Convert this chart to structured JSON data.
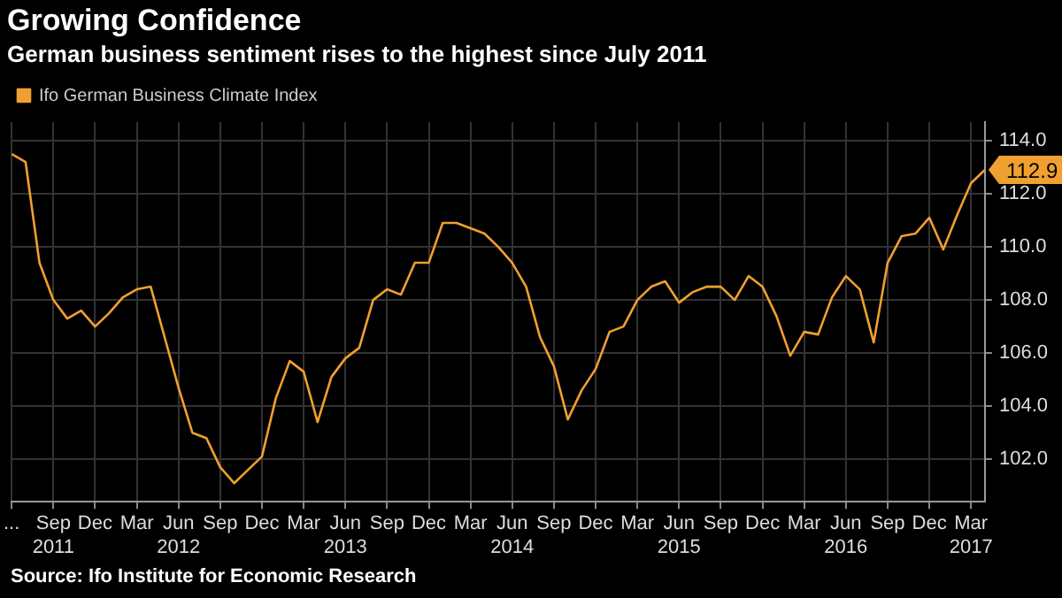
{
  "chart_data": {
    "type": "line",
    "title": "Growing Confidence",
    "subtitle": "German business sentiment rises to the highest since July 2011",
    "annotations": [
      "Source: Ifo Institute for Economic Research"
    ],
    "x": [
      "2011-06",
      "2011-07",
      "2011-08",
      "2011-09",
      "2011-10",
      "2011-11",
      "2011-12",
      "2012-01",
      "2012-02",
      "2012-03",
      "2012-04",
      "2012-05",
      "2012-06",
      "2012-07",
      "2012-08",
      "2012-09",
      "2012-10",
      "2012-11",
      "2012-12",
      "2013-01",
      "2013-02",
      "2013-03",
      "2013-04",
      "2013-05",
      "2013-06",
      "2013-07",
      "2013-08",
      "2013-09",
      "2013-10",
      "2013-11",
      "2013-12",
      "2014-01",
      "2014-02",
      "2014-03",
      "2014-04",
      "2014-05",
      "2014-06",
      "2014-07",
      "2014-08",
      "2014-09",
      "2014-10",
      "2014-11",
      "2014-12",
      "2015-01",
      "2015-02",
      "2015-03",
      "2015-04",
      "2015-05",
      "2015-06",
      "2015-07",
      "2015-08",
      "2015-09",
      "2015-10",
      "2015-11",
      "2015-12",
      "2016-01",
      "2016-02",
      "2016-03",
      "2016-04",
      "2016-05",
      "2016-06",
      "2016-07",
      "2016-08",
      "2016-09",
      "2016-10",
      "2016-11",
      "2016-12",
      "2017-01",
      "2017-02",
      "2017-03",
      "2017-04"
    ],
    "series": [
      {
        "name": "Ifo German Business Climate Index",
        "color": "#f0a030",
        "values": [
          113.5,
          113.2,
          109.4,
          108.0,
          107.3,
          107.6,
          107.0,
          107.5,
          108.1,
          108.4,
          108.5,
          106.6,
          104.7,
          103.0,
          102.8,
          101.7,
          101.1,
          101.6,
          102.1,
          104.3,
          105.7,
          105.3,
          103.4,
          105.1,
          105.8,
          106.2,
          108.0,
          108.4,
          108.2,
          109.4,
          109.4,
          110.9,
          110.9,
          110.7,
          110.5,
          110.0,
          109.4,
          108.5,
          106.6,
          105.5,
          103.5,
          104.6,
          105.4,
          106.8,
          107.0,
          108.0,
          108.5,
          108.7,
          107.9,
          108.3,
          108.5,
          108.5,
          108.0,
          108.9,
          108.5,
          107.4,
          105.9,
          106.8,
          106.7,
          108.1,
          108.9,
          108.4,
          106.4,
          109.4,
          110.4,
          110.5,
          111.1,
          109.9,
          111.2,
          112.4,
          112.9
        ],
        "value_labels": [
          null,
          null,
          null,
          null,
          null,
          null,
          null,
          null,
          null,
          null,
          null,
          null,
          null,
          null,
          null,
          null,
          null,
          null,
          null,
          null,
          null,
          null,
          null,
          null,
          null,
          null,
          null,
          null,
          null,
          null,
          null,
          null,
          null,
          null,
          null,
          null,
          null,
          null,
          null,
          null,
          null,
          null,
          null,
          null,
          null,
          null,
          null,
          null,
          null,
          null,
          null,
          null,
          null,
          null,
          null,
          null,
          null,
          null,
          null,
          null,
          null,
          null,
          null,
          null,
          null,
          null,
          null,
          null,
          null,
          null,
          "112.9"
        ]
      }
    ],
    "xlim": [
      "2011-06",
      "2017-04"
    ],
    "xticks": [
      {
        "value": "2011-06",
        "label": "..."
      },
      {
        "value": "2011-09",
        "label": "Sep\n2011"
      },
      {
        "value": "2011-12",
        "label": "Dec"
      },
      {
        "value": "2012-03",
        "label": "Mar"
      },
      {
        "value": "2012-06",
        "label": "Jun\n2012"
      },
      {
        "value": "2012-09",
        "label": "Sep"
      },
      {
        "value": "2012-12",
        "label": "Dec"
      },
      {
        "value": "2013-03",
        "label": "Mar"
      },
      {
        "value": "2013-06",
        "label": "Jun\n2013"
      },
      {
        "value": "2013-09",
        "label": "Sep"
      },
      {
        "value": "2013-12",
        "label": "Dec"
      },
      {
        "value": "2014-03",
        "label": "Mar"
      },
      {
        "value": "2014-06",
        "label": "Jun\n2014"
      },
      {
        "value": "2014-09",
        "label": "Sep"
      },
      {
        "value": "2014-12",
        "label": "Dec"
      },
      {
        "value": "2015-03",
        "label": "Mar"
      },
      {
        "value": "2015-06",
        "label": "Jun\n2015"
      },
      {
        "value": "2015-09",
        "label": "Sep"
      },
      {
        "value": "2015-12",
        "label": "Dec"
      },
      {
        "value": "2016-03",
        "label": "Mar"
      },
      {
        "value": "2016-06",
        "label": "Jun\n2016"
      },
      {
        "value": "2016-09",
        "label": "Sep"
      },
      {
        "value": "2016-12",
        "label": "Dec"
      },
      {
        "value": "2017-03",
        "label": "Mar\n2017"
      }
    ],
    "ylim": [
      100.4,
      114.7
    ],
    "yticks": [
      {
        "value": 102,
        "label": "102.0"
      },
      {
        "value": 104,
        "label": "104.0"
      },
      {
        "value": 106,
        "label": "106.0"
      },
      {
        "value": 108,
        "label": "108.0"
      },
      {
        "value": 110,
        "label": "110.0"
      },
      {
        "value": 112,
        "label": "112.0"
      },
      {
        "value": 114,
        "label": "114.0"
      }
    ],
    "grid": true,
    "legend": "top left",
    "marker": "none",
    "line_style": "solid"
  }
}
